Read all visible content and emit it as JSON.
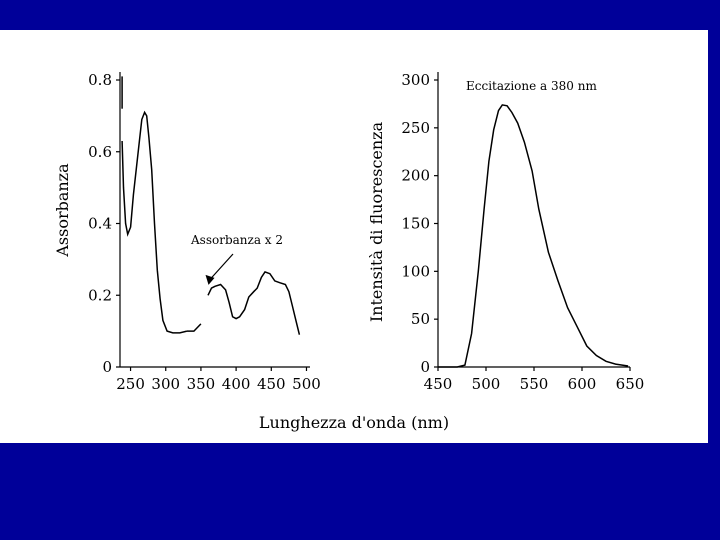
{
  "colors": {
    "slide_background": "#000099",
    "panel": "#ffffff",
    "ink": "#000000"
  },
  "shared_xlabel": "Lunghezza d'onda (nm)",
  "chart_data": [
    {
      "type": "line",
      "title": "",
      "xlabel": "",
      "ylabel": "Assorbanza",
      "xlim": [
        235,
        505
      ],
      "ylim": [
        0,
        0.8
      ],
      "x_ticks": [
        250,
        300,
        350,
        400,
        450,
        500
      ],
      "y_ticks": [
        0,
        0.2,
        0.4,
        0.6,
        0.8
      ],
      "y_tick_labels": [
        "0",
        "0.2",
        "0.4",
        "0.6",
        "0.8"
      ],
      "grid": false,
      "annotation": {
        "text": "Assorbanza x 2",
        "x": 375,
        "y": 0.24
      },
      "series": [
        {
          "segments": [
            [
              [
                238,
                0.81
              ],
              [
                238,
                0.72
              ]
            ],
            [
              [
                238,
                0.63
              ],
              [
                240,
                0.5
              ],
              [
                243,
                0.4
              ],
              [
                246,
                0.37
              ],
              [
                250,
                0.39
              ],
              [
                254,
                0.48
              ],
              [
                258,
                0.55
              ],
              [
                262,
                0.62
              ],
              [
                266,
                0.69
              ],
              [
                270,
                0.71
              ],
              [
                273,
                0.7
              ],
              [
                276,
                0.64
              ],
              [
                280,
                0.55
              ],
              [
                284,
                0.4
              ],
              [
                288,
                0.27
              ],
              [
                292,
                0.19
              ],
              [
                296,
                0.13
              ],
              [
                302,
                0.1
              ],
              [
                310,
                0.095
              ],
              [
                320,
                0.095
              ],
              [
                330,
                0.1
              ]
            ],
            [
              [
                330,
                0.1
              ],
              [
                340,
                0.1
              ],
              [
                350,
                0.12
              ]
            ],
            [
              [
                360,
                0.2
              ],
              [
                365,
                0.22
              ],
              [
                370,
                0.225
              ],
              [
                378,
                0.23
              ],
              [
                385,
                0.215
              ],
              [
                390,
                0.18
              ],
              [
                395,
                0.14
              ],
              [
                400,
                0.135
              ],
              [
                405,
                0.14
              ],
              [
                412,
                0.16
              ],
              [
                418,
                0.195
              ],
              [
                425,
                0.21
              ],
              [
                430,
                0.22
              ],
              [
                436,
                0.25
              ],
              [
                441,
                0.265
              ],
              [
                448,
                0.26
              ],
              [
                455,
                0.24
              ],
              [
                462,
                0.235
              ],
              [
                470,
                0.23
              ],
              [
                475,
                0.21
              ],
              [
                480,
                0.17
              ],
              [
                485,
                0.13
              ],
              [
                490,
                0.09
              ]
            ]
          ]
        }
      ]
    },
    {
      "type": "line",
      "title": "",
      "xlabel": "",
      "ylabel": "Intensità di fluorescenza",
      "xlim": [
        450,
        650
      ],
      "ylim": [
        0,
        300
      ],
      "x_ticks": [
        450,
        500,
        550,
        600,
        650
      ],
      "y_ticks": [
        0,
        50,
        100,
        150,
        200,
        250,
        300
      ],
      "grid": false,
      "annotation": {
        "text": "Eccitazione a 380 nm"
      },
      "series": [
        {
          "segments": [
            [
              [
                450,
                0
              ],
              [
                470,
                0
              ],
              [
                478,
                2
              ],
              [
                485,
                35
              ],
              [
                492,
                100
              ],
              [
                498,
                165
              ],
              [
                503,
                215
              ],
              [
                508,
                248
              ],
              [
                513,
                268
              ],
              [
                517,
                274
              ],
              [
                522,
                273
              ],
              [
                527,
                266
              ],
              [
                533,
                255
              ],
              [
                540,
                235
              ],
              [
                548,
                205
              ],
              [
                555,
                165
              ],
              [
                565,
                120
              ],
              [
                575,
                90
              ],
              [
                585,
                62
              ],
              [
                595,
                42
              ],
              [
                605,
                22
              ],
              [
                615,
                12
              ],
              [
                625,
                6
              ],
              [
                635,
                3
              ],
              [
                648,
                1
              ]
            ]
          ]
        }
      ]
    }
  ]
}
